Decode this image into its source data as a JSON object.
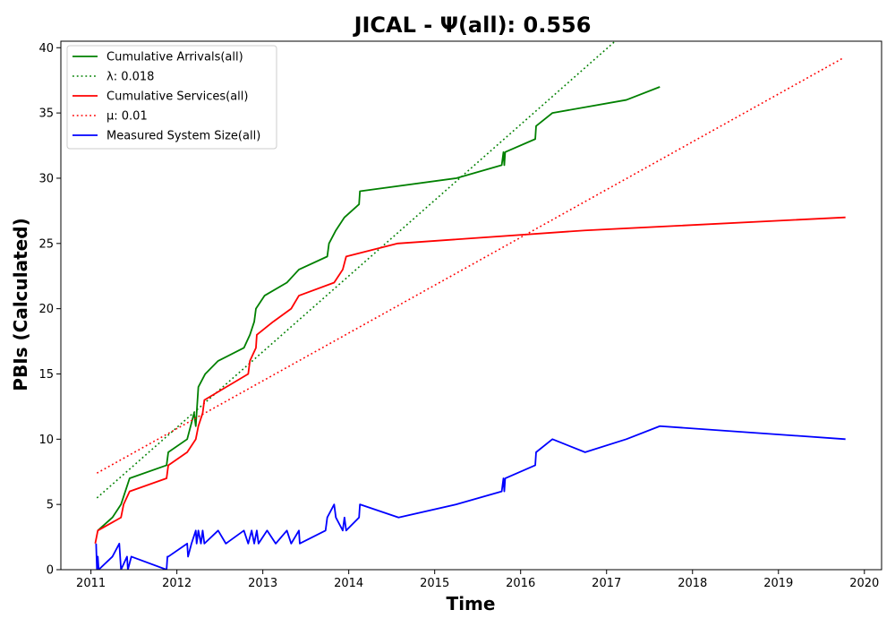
{
  "chart_data": {
    "type": "line",
    "title": "JICAL -  Ψ(all): 0.556",
    "xlabel": "Time",
    "ylabel": "PBIs (Calculated)",
    "xlim": [
      2010.65,
      2020.2
    ],
    "ylim": [
      0,
      40.5
    ],
    "xticks": [
      2011,
      2012,
      2013,
      2014,
      2015,
      2016,
      2017,
      2018,
      2019,
      2020
    ],
    "yticks": [
      0,
      5,
      10,
      15,
      20,
      25,
      30,
      35,
      40
    ],
    "grid": false,
    "legend_position": "top-left",
    "series": [
      {
        "name": "Cumulative Arrivals(all)",
        "style": "solid",
        "color": "#008000",
        "points": [
          [
            2011.08,
            3
          ],
          [
            2011.25,
            4
          ],
          [
            2011.35,
            5
          ],
          [
            2011.45,
            7
          ],
          [
            2011.88,
            8
          ],
          [
            2011.9,
            9
          ],
          [
            2012.12,
            10
          ],
          [
            2012.2,
            12
          ],
          [
            2012.22,
            11
          ],
          [
            2012.25,
            14
          ],
          [
            2012.33,
            15
          ],
          [
            2012.48,
            16
          ],
          [
            2012.78,
            17
          ],
          [
            2012.85,
            18
          ],
          [
            2012.9,
            19
          ],
          [
            2012.92,
            20
          ],
          [
            2013.02,
            21
          ],
          [
            2013.28,
            22
          ],
          [
            2013.42,
            23
          ],
          [
            2013.75,
            24
          ],
          [
            2013.77,
            25
          ],
          [
            2013.85,
            26
          ],
          [
            2013.95,
            27
          ],
          [
            2014.12,
            28
          ],
          [
            2014.13,
            29
          ],
          [
            2015.25,
            30
          ],
          [
            2015.78,
            31
          ],
          [
            2015.8,
            32
          ],
          [
            2015.81,
            31
          ],
          [
            2015.82,
            32
          ],
          [
            2016.17,
            33
          ],
          [
            2016.18,
            34
          ],
          [
            2016.37,
            35
          ],
          [
            2017.23,
            36
          ],
          [
            2017.62,
            37
          ]
        ]
      },
      {
        "name": "λ: 0.018",
        "style": "dotted",
        "color": "#008000",
        "points": [
          [
            2011.07,
            5.5
          ],
          [
            2017.1,
            40.5
          ]
        ]
      },
      {
        "name": "Cumulative Services(all)",
        "style": "solid",
        "color": "#ff0000",
        "points": [
          [
            2011.05,
            2
          ],
          [
            2011.08,
            3
          ],
          [
            2011.35,
            4
          ],
          [
            2011.38,
            5
          ],
          [
            2011.45,
            6
          ],
          [
            2011.88,
            7
          ],
          [
            2011.9,
            8
          ],
          [
            2012.12,
            9
          ],
          [
            2012.22,
            10
          ],
          [
            2012.25,
            11
          ],
          [
            2012.3,
            12
          ],
          [
            2012.32,
            13
          ],
          [
            2012.83,
            15
          ],
          [
            2012.85,
            16
          ],
          [
            2012.92,
            17
          ],
          [
            2012.93,
            18
          ],
          [
            2013.12,
            19
          ],
          [
            2013.33,
            20
          ],
          [
            2013.42,
            21
          ],
          [
            2013.83,
            22
          ],
          [
            2013.93,
            23
          ],
          [
            2013.97,
            24
          ],
          [
            2014.57,
            25
          ],
          [
            2016.75,
            26
          ],
          [
            2019.78,
            27
          ]
        ]
      },
      {
        "name": "μ: 0.01",
        "style": "dotted",
        "color": "#ff0000",
        "points": [
          [
            2011.07,
            7.4
          ],
          [
            2019.75,
            39.2
          ]
        ]
      },
      {
        "name": "Measured System Size(all)",
        "style": "solid",
        "color": "#0000ff",
        "points": [
          [
            2011.06,
            2
          ],
          [
            2011.07,
            0
          ],
          [
            2011.08,
            1
          ],
          [
            2011.09,
            0
          ],
          [
            2011.25,
            1
          ],
          [
            2011.33,
            2
          ],
          [
            2011.35,
            0
          ],
          [
            2011.42,
            1
          ],
          [
            2011.43,
            0
          ],
          [
            2011.47,
            1
          ],
          [
            2011.88,
            0
          ],
          [
            2011.89,
            1
          ],
          [
            2011.9,
            1
          ],
          [
            2012.12,
            2
          ],
          [
            2012.13,
            1
          ],
          [
            2012.17,
            2
          ],
          [
            2012.22,
            3
          ],
          [
            2012.23,
            2
          ],
          [
            2012.25,
            3
          ],
          [
            2012.28,
            2
          ],
          [
            2012.3,
            3
          ],
          [
            2012.32,
            2
          ],
          [
            2012.48,
            3
          ],
          [
            2012.57,
            2
          ],
          [
            2012.78,
            3
          ],
          [
            2012.83,
            2
          ],
          [
            2012.87,
            3
          ],
          [
            2012.9,
            2
          ],
          [
            2012.93,
            3
          ],
          [
            2012.95,
            2
          ],
          [
            2013.05,
            3
          ],
          [
            2013.15,
            2
          ],
          [
            2013.28,
            3
          ],
          [
            2013.33,
            2
          ],
          [
            2013.42,
            3
          ],
          [
            2013.43,
            2
          ],
          [
            2013.73,
            3
          ],
          [
            2013.75,
            4
          ],
          [
            2013.83,
            5
          ],
          [
            2013.85,
            4
          ],
          [
            2013.93,
            3
          ],
          [
            2013.95,
            4
          ],
          [
            2013.97,
            3
          ],
          [
            2014.12,
            4
          ],
          [
            2014.13,
            5
          ],
          [
            2014.58,
            4
          ],
          [
            2015.25,
            5
          ],
          [
            2015.78,
            6
          ],
          [
            2015.8,
            7
          ],
          [
            2015.81,
            6
          ],
          [
            2015.82,
            7
          ],
          [
            2016.17,
            8
          ],
          [
            2016.18,
            9
          ],
          [
            2016.37,
            10
          ],
          [
            2016.75,
            9
          ],
          [
            2017.23,
            10
          ],
          [
            2017.62,
            11
          ],
          [
            2019.78,
            10
          ]
        ]
      }
    ]
  }
}
